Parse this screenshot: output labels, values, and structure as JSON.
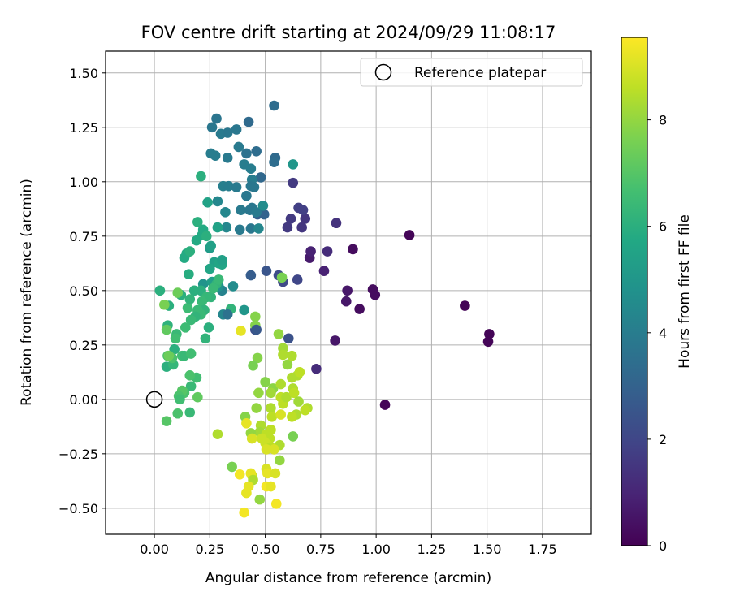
{
  "chart_data": {
    "type": "scatter",
    "title": "FOV centre drift starting at 2024/09/29 11:08:17",
    "xlabel": "Angular distance from reference (arcmin)",
    "ylabel": "Rotation from reference (arcmin)",
    "xlim": [
      -0.22,
      1.97
    ],
    "ylim": [
      -0.62,
      1.6
    ],
    "xticks": [
      0.0,
      0.25,
      0.5,
      0.75,
      1.0,
      1.25,
      1.5,
      1.75
    ],
    "xtick_labels": [
      "0.00",
      "0.25",
      "0.50",
      "0.75",
      "1.00",
      "1.25",
      "1.50",
      "1.75"
    ],
    "yticks": [
      -0.5,
      -0.25,
      0.0,
      0.25,
      0.5,
      0.75,
      1.0,
      1.25,
      1.5
    ],
    "ytick_labels": [
      "−0.50",
      "−0.25",
      "0.00",
      "0.25",
      "0.50",
      "0.75",
      "1.00",
      "1.25",
      "1.50"
    ],
    "grid": true,
    "legend": {
      "placement": "top-right",
      "entries": [
        "Reference platepar"
      ]
    },
    "reference_point": [
      0.0,
      0.0
    ],
    "colorbar": {
      "label": "Hours from first FF file",
      "colormap": "viridis",
      "range": [
        0,
        9.55
      ],
      "ticks": [
        0,
        2,
        4,
        6,
        8
      ],
      "tick_labels": [
        "0",
        "2",
        "4",
        "6",
        "8"
      ]
    },
    "points": [
      [
        1.15,
        0.755,
        0.1
      ],
      [
        1.4,
        0.43,
        0.1
      ],
      [
        1.51,
        0.3,
        0.1
      ],
      [
        1.505,
        0.265,
        0.1
      ],
      [
        1.04,
        -0.025,
        0.1
      ],
      [
        0.925,
        0.415,
        0.3
      ],
      [
        0.995,
        0.48,
        0.3
      ],
      [
        0.985,
        0.505,
        0.3
      ],
      [
        0.895,
        0.69,
        0.3
      ],
      [
        0.865,
        0.45,
        0.6
      ],
      [
        0.87,
        0.5,
        0.6
      ],
      [
        0.815,
        0.27,
        0.6
      ],
      [
        0.7,
        0.65,
        0.7
      ],
      [
        0.705,
        0.68,
        0.9
      ],
      [
        0.765,
        0.59,
        0.9
      ],
      [
        0.78,
        0.68,
        1.2
      ],
      [
        0.82,
        0.81,
        1.4
      ],
      [
        0.73,
        0.14,
        1.2
      ],
      [
        0.68,
        0.83,
        1.5
      ],
      [
        0.665,
        0.79,
        1.5
      ],
      [
        0.6,
        0.79,
        1.6
      ],
      [
        0.615,
        0.83,
        1.6
      ],
      [
        0.65,
        0.88,
        1.8
      ],
      [
        0.67,
        0.87,
        1.8
      ],
      [
        0.625,
        0.995,
        1.6
      ],
      [
        0.645,
        0.55,
        2.0
      ],
      [
        0.58,
        0.54,
        2.1
      ],
      [
        0.56,
        0.57,
        2.2
      ],
      [
        0.505,
        0.59,
        2.5
      ],
      [
        0.435,
        0.57,
        2.8
      ],
      [
        0.605,
        0.28,
        2.4
      ],
      [
        0.455,
        0.32,
        2.2
      ],
      [
        0.54,
        1.35,
        3.4
      ],
      [
        0.545,
        1.11,
        3.3
      ],
      [
        0.54,
        1.09,
        3.4
      ],
      [
        0.465,
        0.85,
        2.8
      ],
      [
        0.495,
        0.85,
        3.0
      ],
      [
        0.48,
        1.02,
        3.2
      ],
      [
        0.46,
        1.14,
        3.4
      ],
      [
        0.415,
        1.13,
        3.6
      ],
      [
        0.425,
        1.275,
        3.3
      ],
      [
        0.28,
        1.29,
        3.7
      ],
      [
        0.26,
        1.25,
        3.8
      ],
      [
        0.3,
        1.22,
        3.9
      ],
      [
        0.33,
        1.225,
        3.8
      ],
      [
        0.37,
        1.24,
        3.8
      ],
      [
        0.38,
        1.16,
        3.9
      ],
      [
        0.33,
        1.11,
        3.9
      ],
      [
        0.275,
        1.12,
        4.0
      ],
      [
        0.255,
        1.13,
        4.0
      ],
      [
        0.405,
        1.08,
        4.0
      ],
      [
        0.435,
        1.06,
        4.0
      ],
      [
        0.44,
        1.01,
        4.0
      ],
      [
        0.45,
        0.975,
        3.8
      ],
      [
        0.435,
        0.98,
        3.8
      ],
      [
        0.415,
        0.935,
        3.8
      ],
      [
        0.39,
        0.87,
        3.9
      ],
      [
        0.43,
        0.87,
        3.8
      ],
      [
        0.44,
        0.88,
        3.8
      ],
      [
        0.46,
        0.86,
        3.9
      ],
      [
        0.435,
        0.785,
        3.8
      ],
      [
        0.385,
        0.78,
        3.9
      ],
      [
        0.31,
        0.98,
        4.1
      ],
      [
        0.335,
        0.98,
        4.0
      ],
      [
        0.37,
        0.975,
        3.9
      ],
      [
        0.32,
        0.86,
        4.4
      ],
      [
        0.47,
        0.785,
        4.4
      ],
      [
        0.49,
        0.89,
        4.6
      ],
      [
        0.325,
        0.79,
        4.4
      ],
      [
        0.285,
        0.91,
        4.4
      ],
      [
        0.305,
        0.5,
        4.2
      ],
      [
        0.31,
        0.39,
        4.4
      ],
      [
        0.29,
        0.52,
        4.8
      ],
      [
        0.355,
        0.52,
        4.6
      ],
      [
        0.625,
        1.08,
        5.0
      ],
      [
        0.22,
        0.53,
        4.9
      ],
      [
        0.21,
        0.5,
        5.2
      ],
      [
        0.25,
        0.695,
        5.2
      ],
      [
        0.255,
        0.705,
        5.4
      ],
      [
        0.24,
        0.905,
        5.5
      ],
      [
        0.285,
        0.79,
        5.5
      ],
      [
        0.27,
        0.63,
        5.4
      ],
      [
        0.29,
        0.625,
        5.6
      ],
      [
        0.305,
        0.62,
        5.6
      ],
      [
        0.305,
        0.64,
        5.4
      ],
      [
        0.26,
        0.54,
        5.3
      ],
      [
        0.25,
        0.6,
        5.6
      ],
      [
        0.215,
        0.755,
        5.8
      ],
      [
        0.22,
        0.78,
        5.8
      ],
      [
        0.235,
        0.75,
        6.0
      ],
      [
        0.19,
        0.73,
        5.8
      ],
      [
        0.195,
        0.815,
        6.0
      ],
      [
        0.21,
        1.025,
        6.0
      ],
      [
        0.135,
        0.65,
        5.8
      ],
      [
        0.145,
        0.67,
        5.8
      ],
      [
        0.16,
        0.68,
        6.0
      ],
      [
        0.155,
        0.575,
        5.9
      ],
      [
        0.12,
        0.48,
        6.0
      ],
      [
        0.18,
        0.5,
        6.0
      ],
      [
        0.21,
        0.5,
        6.0
      ],
      [
        0.255,
        0.47,
        6.2
      ],
      [
        0.28,
        0.53,
        6.2
      ],
      [
        0.29,
        0.55,
        6.4
      ],
      [
        0.265,
        0.51,
        6.4
      ],
      [
        0.235,
        0.47,
        6.3
      ],
      [
        0.215,
        0.45,
        6.4
      ],
      [
        0.225,
        0.41,
        6.2
      ],
      [
        0.21,
        0.39,
        6.4
      ],
      [
        0.195,
        0.41,
        6.4
      ],
      [
        0.185,
        0.38,
        6.2
      ],
      [
        0.165,
        0.365,
        6.4
      ],
      [
        0.15,
        0.42,
        6.5
      ],
      [
        0.14,
        0.33,
        6.5
      ],
      [
        0.16,
        0.46,
        6.2
      ],
      [
        0.345,
        0.415,
        6.2
      ],
      [
        0.245,
        0.33,
        6.0
      ],
      [
        0.23,
        0.28,
        6.2
      ],
      [
        0.025,
        0.5,
        6.0
      ],
      [
        0.065,
        0.43,
        6.0
      ],
      [
        0.06,
        0.34,
        6.1
      ],
      [
        0.055,
        0.15,
        6.0
      ],
      [
        0.09,
        0.23,
        6.0
      ],
      [
        0.085,
        0.16,
        6.3
      ],
      [
        0.1,
        0.3,
        6.4
      ],
      [
        0.095,
        0.28,
        6.6
      ],
      [
        0.06,
        0.2,
        6.8
      ],
      [
        0.08,
        0.19,
        6.8
      ],
      [
        0.125,
        0.2,
        6.6
      ],
      [
        0.135,
        0.2,
        6.4
      ],
      [
        0.165,
        0.21,
        6.6
      ],
      [
        0.165,
        0.06,
        6.4
      ],
      [
        0.19,
        0.1,
        6.6
      ],
      [
        0.16,
        0.11,
        6.8
      ],
      [
        0.135,
        0.03,
        6.8
      ],
      [
        0.125,
        0.04,
        7.0
      ],
      [
        0.11,
        0.015,
        6.8
      ],
      [
        0.115,
        0.0,
        6.6
      ],
      [
        0.16,
        -0.06,
        6.4
      ],
      [
        0.105,
        -0.065,
        6.8
      ],
      [
        0.055,
        -0.1,
        7.0
      ],
      [
        0.195,
        0.01,
        7.2
      ],
      [
        0.055,
        0.32,
        7.2
      ],
      [
        0.045,
        0.435,
        7.6
      ],
      [
        0.105,
        0.49,
        7.4
      ],
      [
        0.065,
        0.2,
        7.4
      ],
      [
        0.575,
        0.56,
        7.6
      ],
      [
        0.455,
        0.38,
        7.8
      ],
      [
        0.455,
        0.34,
        7.8
      ],
      [
        0.465,
        0.19,
        7.8
      ],
      [
        0.445,
        0.155,
        7.6
      ],
      [
        0.5,
        0.08,
        7.8
      ],
      [
        0.535,
        0.05,
        7.9
      ],
      [
        0.47,
        0.03,
        8.0
      ],
      [
        0.46,
        -0.04,
        8.0
      ],
      [
        0.56,
        0.3,
        8.0
      ],
      [
        0.58,
        0.235,
        8.2
      ],
      [
        0.58,
        0.205,
        8.4
      ],
      [
        0.6,
        0.16,
        8.0
      ],
      [
        0.62,
        0.2,
        8.4
      ],
      [
        0.62,
        0.1,
        8.4
      ],
      [
        0.645,
        0.11,
        8.4
      ],
      [
        0.655,
        0.125,
        8.6
      ],
      [
        0.57,
        0.07,
        8.4
      ],
      [
        0.525,
        0.03,
        8.2
      ],
      [
        0.57,
        0.01,
        8.6
      ],
      [
        0.58,
        -0.02,
        8.6
      ],
      [
        0.595,
        0.01,
        8.4
      ],
      [
        0.625,
        0.05,
        8.4
      ],
      [
        0.63,
        0.03,
        8.6
      ],
      [
        0.65,
        -0.01,
        8.2
      ],
      [
        0.69,
        -0.04,
        8.4
      ],
      [
        0.68,
        -0.05,
        8.6
      ],
      [
        0.64,
        -0.07,
        8.4
      ],
      [
        0.62,
        -0.08,
        8.6
      ],
      [
        0.525,
        -0.04,
        8.4
      ],
      [
        0.53,
        -0.08,
        8.6
      ],
      [
        0.48,
        -0.12,
        8.4
      ],
      [
        0.41,
        -0.08,
        7.8
      ],
      [
        0.525,
        -0.14,
        8.6
      ],
      [
        0.475,
        -0.15,
        8.2
      ],
      [
        0.435,
        -0.155,
        8.0
      ],
      [
        0.505,
        -0.16,
        8.6
      ],
      [
        0.52,
        -0.18,
        8.6
      ],
      [
        0.625,
        -0.17,
        7.6
      ],
      [
        0.565,
        -0.21,
        8.4
      ],
      [
        0.565,
        -0.28,
        8.0
      ],
      [
        0.485,
        -0.18,
        8.8
      ],
      [
        0.5,
        -0.2,
        8.8
      ],
      [
        0.51,
        -0.21,
        8.8
      ],
      [
        0.525,
        -0.22,
        8.6
      ],
      [
        0.54,
        -0.23,
        9.0
      ],
      [
        0.505,
        -0.23,
        9.0
      ],
      [
        0.44,
        -0.18,
        9.0
      ],
      [
        0.415,
        -0.11,
        9.2
      ],
      [
        0.285,
        -0.16,
        8.4
      ],
      [
        0.39,
        0.315,
        9.2
      ],
      [
        0.57,
        -0.07,
        9.0
      ],
      [
        0.505,
        -0.32,
        9.0
      ],
      [
        0.51,
        -0.34,
        9.2
      ],
      [
        0.545,
        -0.34,
        9.0
      ],
      [
        0.44,
        -0.35,
        8.8
      ],
      [
        0.435,
        -0.34,
        9.2
      ],
      [
        0.385,
        -0.345,
        9.4
      ],
      [
        0.445,
        -0.37,
        8.4
      ],
      [
        0.35,
        -0.31,
        7.6
      ],
      [
        0.425,
        -0.4,
        9.2
      ],
      [
        0.505,
        -0.4,
        9.4
      ],
      [
        0.525,
        -0.4,
        9.2
      ],
      [
        0.415,
        -0.43,
        9.2
      ],
      [
        0.475,
        -0.46,
        8.0
      ],
      [
        0.405,
        -0.52,
        9.4
      ],
      [
        0.55,
        -0.48,
        9.4
      ],
      [
        0.33,
        0.39,
        3.6
      ],
      [
        0.405,
        0.41,
        5.0
      ],
      [
        0.46,
        0.32,
        2.6
      ]
    ]
  }
}
